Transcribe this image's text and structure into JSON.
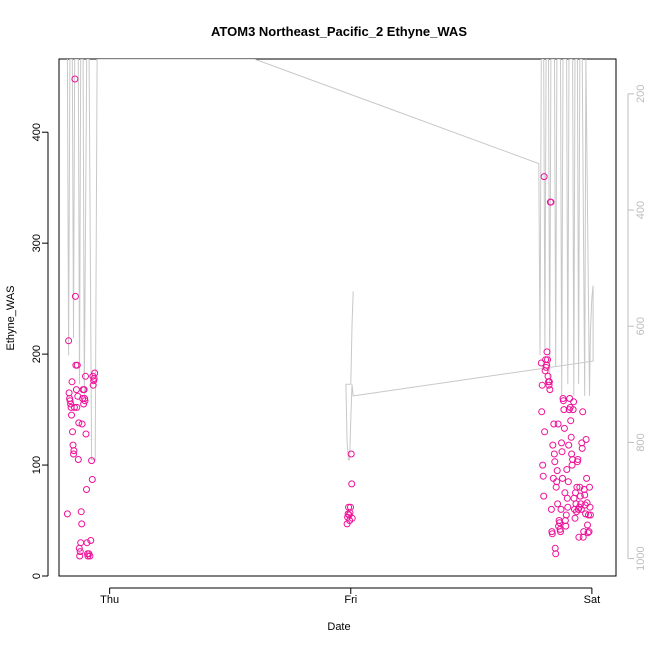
{
  "chart_data": {
    "type": "scatter",
    "title": "ATOM3 Northeast_Pacific_2 Ethyne_WAS",
    "xlabel": "Date",
    "ylabel": "Ethyne_WAS",
    "x_ticks": [
      {
        "label": "Thu",
        "value": 0
      },
      {
        "label": "Fri",
        "value": 1
      },
      {
        "label": "Sat",
        "value": 2
      }
    ],
    "x_unit": "days from Thu",
    "xlim": [
      -0.21,
      2.1
    ],
    "ylim": [
      0,
      466
    ],
    "y_ticks": [
      0,
      100,
      200,
      300,
      400
    ],
    "y2_label": "",
    "y2_ticks": [
      200,
      400,
      600,
      800,
      1000
    ],
    "y2lim": [
      1030,
      140
    ],
    "y2_reversed": true,
    "colors": {
      "points": "#ee1199",
      "secondary_line": "#c8c8c8",
      "secondary_axis": "#bdbdbd"
    },
    "series": [
      {
        "type": "scatter",
        "axis": "left",
        "values": [
          [
            -0.175,
            56
          ],
          [
            -0.17,
            212
          ],
          [
            -0.168,
            165
          ],
          [
            -0.166,
            160
          ],
          [
            -0.164,
            158
          ],
          [
            -0.162,
            155
          ],
          [
            -0.16,
            152
          ],
          [
            -0.158,
            145
          ],
          [
            -0.156,
            175
          ],
          [
            -0.154,
            130
          ],
          [
            -0.152,
            118
          ],
          [
            -0.15,
            110
          ],
          [
            -0.148,
            113
          ],
          [
            -0.146,
            152
          ],
          [
            -0.144,
            448
          ],
          [
            -0.142,
            252
          ],
          [
            -0.14,
            190
          ],
          [
            -0.138,
            168
          ],
          [
            -0.136,
            152
          ],
          [
            -0.134,
            190
          ],
          [
            -0.132,
            162
          ],
          [
            -0.13,
            105
          ],
          [
            -0.128,
            138
          ],
          [
            -0.126,
            25
          ],
          [
            -0.124,
            18
          ],
          [
            -0.122,
            22
          ],
          [
            -0.12,
            30
          ],
          [
            -0.118,
            58
          ],
          [
            -0.116,
            47
          ],
          [
            -0.114,
            137
          ],
          [
            -0.112,
            160
          ],
          [
            -0.11,
            168
          ],
          [
            -0.108,
            155
          ],
          [
            -0.106,
            168
          ],
          [
            -0.104,
            160
          ],
          [
            -0.102,
            158
          ],
          [
            -0.1,
            180
          ],
          [
            -0.098,
            128
          ],
          [
            -0.096,
            78
          ],
          [
            -0.094,
            30
          ],
          [
            -0.092,
            20
          ],
          [
            -0.09,
            18
          ],
          [
            -0.086,
            20
          ],
          [
            -0.082,
            18
          ],
          [
            -0.078,
            32
          ],
          [
            -0.075,
            104
          ],
          [
            -0.072,
            87
          ],
          [
            -0.07,
            180
          ],
          [
            -0.068,
            172
          ],
          [
            -0.066,
            176
          ],
          [
            -0.064,
            178
          ],
          [
            -0.062,
            183
          ],
          [
            0.985,
            47
          ],
          [
            0.987,
            53
          ],
          [
            0.989,
            56
          ],
          [
            0.991,
            62
          ],
          [
            0.993,
            55
          ],
          [
            0.995,
            50
          ],
          [
            0.997,
            57
          ],
          [
            0.999,
            62
          ],
          [
            1.002,
            110
          ],
          [
            1.004,
            83
          ],
          [
            1.006,
            52
          ],
          [
            1.79,
            192
          ],
          [
            1.792,
            148
          ],
          [
            1.794,
            172
          ],
          [
            1.796,
            100
          ],
          [
            1.798,
            90
          ],
          [
            1.8,
            72
          ],
          [
            1.802,
            360
          ],
          [
            1.804,
            130
          ],
          [
            1.806,
            185
          ],
          [
            1.808,
            195
          ],
          [
            1.81,
            188
          ],
          [
            1.812,
            190
          ],
          [
            1.814,
            202
          ],
          [
            1.816,
            195
          ],
          [
            1.818,
            180
          ],
          [
            1.82,
            175
          ],
          [
            1.822,
            172
          ],
          [
            1.824,
            175
          ],
          [
            1.826,
            168
          ],
          [
            1.828,
            337
          ],
          [
            1.83,
            337
          ],
          [
            1.832,
            60
          ],
          [
            1.834,
            40
          ],
          [
            1.836,
            38
          ],
          [
            1.838,
            118
          ],
          [
            1.84,
            88
          ],
          [
            1.842,
            137
          ],
          [
            1.844,
            110
          ],
          [
            1.846,
            103
          ],
          [
            1.848,
            25
          ],
          [
            1.85,
            20
          ],
          [
            1.852,
            80
          ],
          [
            1.854,
            85
          ],
          [
            1.856,
            95
          ],
          [
            1.858,
            65
          ],
          [
            1.86,
            137
          ],
          [
            1.862,
            45
          ],
          [
            1.864,
            50
          ],
          [
            1.866,
            48
          ],
          [
            1.868,
            42
          ],
          [
            1.87,
            40
          ],
          [
            1.872,
            60
          ],
          [
            1.874,
            120
          ],
          [
            1.876,
            112
          ],
          [
            1.878,
            88
          ],
          [
            1.88,
            160
          ],
          [
            1.882,
            158
          ],
          [
            1.884,
            150
          ],
          [
            1.886,
            133
          ],
          [
            1.888,
            75
          ],
          [
            1.89,
            50
          ],
          [
            1.892,
            45
          ],
          [
            1.894,
            55
          ],
          [
            1.896,
            96
          ],
          [
            1.898,
            70
          ],
          [
            1.9,
            62
          ],
          [
            1.902,
            85
          ],
          [
            1.904,
            118
          ],
          [
            1.906,
            150
          ],
          [
            1.908,
            160
          ],
          [
            1.91,
            152
          ],
          [
            1.912,
            140
          ],
          [
            1.914,
            125
          ],
          [
            1.916,
            110
          ],
          [
            1.918,
            100
          ],
          [
            1.92,
            105
          ],
          [
            1.922,
            150
          ],
          [
            1.924,
            157
          ],
          [
            1.926,
            70
          ],
          [
            1.928,
            60
          ],
          [
            1.93,
            52
          ],
          [
            1.932,
            75
          ],
          [
            1.934,
            65
          ],
          [
            1.936,
            58
          ],
          [
            1.938,
            80
          ],
          [
            1.94,
            103
          ],
          [
            1.942,
            105
          ],
          [
            1.944,
            60
          ],
          [
            1.946,
            35
          ],
          [
            1.948,
            62
          ],
          [
            1.95,
            80
          ],
          [
            1.952,
            72
          ],
          [
            1.954,
            65
          ],
          [
            1.956,
            60
          ],
          [
            1.958,
            120
          ],
          [
            1.96,
            115
          ],
          [
            1.962,
            148
          ],
          [
            1.964,
            35
          ],
          [
            1.966,
            40
          ],
          [
            1.968,
            78
          ],
          [
            1.97,
            73
          ],
          [
            1.972,
            64
          ],
          [
            1.974,
            56
          ],
          [
            1.976,
            123
          ],
          [
            1.978,
            88
          ],
          [
            1.98,
            66
          ],
          [
            1.982,
            46
          ],
          [
            1.984,
            39
          ],
          [
            1.986,
            55
          ],
          [
            1.988,
            40
          ],
          [
            1.99,
            80
          ],
          [
            1.992,
            62
          ],
          [
            1.994,
            55
          ]
        ]
      },
      {
        "type": "line",
        "axis": "right",
        "values": [
          [
            -0.175,
            140
          ],
          [
            -0.17,
            650
          ],
          [
            -0.165,
            140
          ],
          [
            -0.155,
            140
          ],
          [
            -0.15,
            620
          ],
          [
            -0.145,
            140
          ],
          [
            -0.13,
            140
          ],
          [
            -0.125,
            700
          ],
          [
            -0.12,
            140
          ],
          [
            -0.11,
            140
          ],
          [
            -0.105,
            720
          ],
          [
            -0.095,
            140
          ],
          [
            -0.085,
            140
          ],
          [
            -0.075,
            830
          ],
          [
            -0.06,
            830
          ],
          [
            -0.052,
            140
          ],
          [
            0.6,
            140
          ],
          [
            1.78,
            320
          ],
          [
            1.785,
            650
          ],
          [
            1.79,
            140
          ],
          [
            1.8,
            140
          ],
          [
            1.805,
            640
          ],
          [
            1.81,
            140
          ],
          [
            1.82,
            140
          ],
          [
            1.825,
            700
          ],
          [
            1.83,
            140
          ],
          [
            1.845,
            140
          ],
          [
            1.85,
            670
          ],
          [
            1.855,
            140
          ],
          [
            1.87,
            140
          ],
          [
            1.875,
            720
          ],
          [
            1.88,
            140
          ],
          [
            1.895,
            140
          ],
          [
            1.9,
            700
          ],
          [
            1.905,
            140
          ],
          [
            1.92,
            140
          ],
          [
            1.925,
            720
          ],
          [
            1.93,
            140
          ],
          [
            1.94,
            140
          ],
          [
            1.945,
            700
          ],
          [
            1.95,
            140
          ],
          [
            1.96,
            140
          ],
          [
            1.97,
            720
          ],
          [
            1.975,
            140
          ],
          [
            1.99,
            720
          ],
          [
            1.994,
            610
          ],
          [
            2.0,
            550
          ],
          [
            2.005,
            530
          ],
          [
            2.005,
            660
          ],
          [
            1.01,
            720
          ],
          [
            1.005,
            700
          ],
          [
            1.0,
            760
          ],
          [
            0.995,
            830
          ],
          [
            0.99,
            830
          ],
          [
            0.985,
            800
          ],
          [
            0.98,
            700
          ],
          [
            1.0,
            700
          ],
          [
            1.005,
            600
          ],
          [
            1.01,
            540
          ]
        ]
      }
    ]
  }
}
